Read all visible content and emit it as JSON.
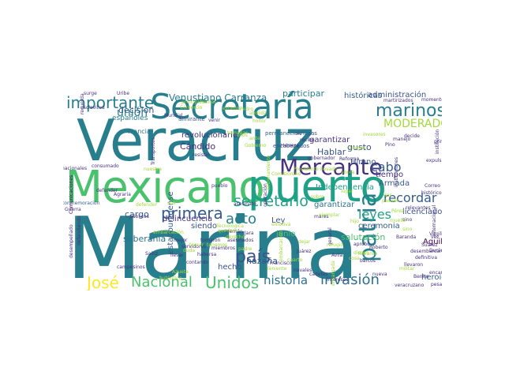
{
  "word_cloud": {
    "background": "#ffffff",
    "palette": [
      "#440154",
      "#46327e",
      "#365c8d",
      "#277f8e",
      "#1fa187",
      "#4ac16d",
      "#a0da39",
      "#fde725",
      "#2c728e",
      "#3b528b"
    ],
    "words": [
      {
        "text": "Marina",
        "color": "#277f8e"
      },
      {
        "text": "Veracruz",
        "color": "#277f8e"
      },
      {
        "text": "Mexicano",
        "color": "#4ac16d"
      },
      {
        "text": "puerto",
        "color": "#1fa187"
      },
      {
        "text": "Secretaría",
        "color": "#277f8e"
      },
      {
        "text": "Mercante",
        "color": "#46327e"
      },
      {
        "text": "marinos",
        "color": "#277f8e"
      },
      {
        "text": "importante",
        "color": "#277f8e"
      },
      {
        "text": "patria",
        "color": "#277f8e"
      },
      {
        "text": "MODERADORA",
        "color": "#a0da39"
      },
      {
        "text": "Unidos",
        "color": "#4ac16d"
      },
      {
        "text": "Nacional",
        "color": "#4ac16d"
      },
      {
        "text": "José",
        "color": "#fde725"
      },
      {
        "text": "historia",
        "color": "#2c728e"
      },
      {
        "text": "invasión",
        "color": "#2c728e"
      },
      {
        "text": "país",
        "color": "#3b528b"
      },
      {
        "text": "acto",
        "color": "#277f8e"
      },
      {
        "text": "primera",
        "color": "#365c8d"
      },
      {
        "text": "secretario",
        "color": "#1fa187"
      },
      {
        "text": "unión",
        "color": "#277f8e"
      },
      {
        "text": "Venustiano Carranza",
        "color": "#277f8e"
      },
      {
        "text": "cabo",
        "color": "#365c8d"
      },
      {
        "text": "leyes",
        "color": "#1fa187"
      },
      {
        "text": "recordar",
        "color": "#365c8d"
      },
      {
        "text": "participar",
        "color": "#277f8e"
      },
      {
        "text": "administración",
        "color": "#3b528b"
      },
      {
        "text": "históricas",
        "color": "#365c8d"
      },
      {
        "text": "garantizar",
        "color": "#46327e"
      },
      {
        "text": "garantizar",
        "color": "#2c728e"
      },
      {
        "text": "decisión",
        "color": "#365c8d"
      },
      {
        "text": "revolucionario",
        "color": "#46327e"
      },
      {
        "text": "Cándido",
        "color": "#46327e"
      },
      {
        "text": "gusto",
        "color": "#3b528b"
      },
      {
        "text": "Hablar",
        "color": "#3b528b"
      },
      {
        "text": "Himno",
        "color": "#365c8d"
      },
      {
        "text": "tiempo",
        "color": "#46327e"
      },
      {
        "text": "Armada",
        "color": "#365c8d"
      },
      {
        "text": "licenciado",
        "color": "#3b528b"
      },
      {
        "text": "Aguilar",
        "color": "#440154"
      },
      {
        "text": "heroicos",
        "color": "#365c8d"
      },
      {
        "text": "soberanía",
        "color": "#2c728e"
      },
      {
        "text": "cargo",
        "color": "#365c8d"
      },
      {
        "text": "delincuencia",
        "color": "#46327e"
      },
      {
        "text": "siendo",
        "color": "#3b528b"
      },
      {
        "text": "hazaña",
        "color": "#365c8d"
      },
      {
        "text": "hecho",
        "color": "#3b528b"
      },
      {
        "text": "Ley",
        "color": "#3b528b"
      },
      {
        "text": "ceremonia",
        "color": "#365c8d"
      },
      {
        "text": "salutación",
        "color": "#4ac16d"
      },
      {
        "text": "junio",
        "color": "#4ac16d"
      },
      {
        "text": "Independencia",
        "color": "#1fa187"
      },
      {
        "text": "estadounidense",
        "color": "#365c8d"
      },
      {
        "text": "españoles",
        "color": "#277f8e"
      },
      {
        "text": "Amigas",
        "color": "#3b528b"
      },
      {
        "text": "permanecían",
        "color": "#365c8d"
      },
      {
        "text": "encabezados",
        "color": "#3b528b"
      },
      {
        "text": "almirante",
        "color": "#3b528b"
      },
      {
        "text": "Francia",
        "color": "#2c728e"
      },
      {
        "text": "Uribe",
        "color": "#46327e"
      },
      {
        "text": "surge",
        "color": "#46327e"
      },
      {
        "text": "esclavitud",
        "color": "#46327e"
      },
      {
        "text": "Mundial",
        "color": "#46327e"
      },
      {
        "text": "Comunicaciones",
        "color": "#440154"
      },
      {
        "text": "nacionales",
        "color": "#46327e"
      },
      {
        "text": "consumado",
        "color": "#46327e"
      },
      {
        "text": "defender",
        "color": "#46327e"
      },
      {
        "text": "conmemoración",
        "color": "#365c8d"
      },
      {
        "text": "Guerra",
        "color": "#46327e"
      },
      {
        "text": "defendiendo",
        "color": "#46327e"
      },
      {
        "text": "desempeñado",
        "color": "#46327e"
      },
      {
        "text": "vicepresidente",
        "color": "#46327e"
      },
      {
        "text": "campesinos",
        "color": "#46327e"
      },
      {
        "text": "públicos",
        "color": "#46327e"
      },
      {
        "text": "Sainz",
        "color": "#46327e"
      },
      {
        "text": "mejor",
        "color": "#46327e"
      },
      {
        "text": "llevar",
        "color": "#46327e"
      },
      {
        "text": "servidores",
        "color": "#46327e"
      },
      {
        "text": "tomaron",
        "color": "#46327e"
      },
      {
        "text": "asesinados",
        "color": "#46327e"
      },
      {
        "text": "miembros",
        "color": "#46327e"
      },
      {
        "text": "asesinato",
        "color": "#46327e"
      },
      {
        "text": "Hernán",
        "color": "#46327e"
      },
      {
        "text": "Jara",
        "color": "#46327e"
      },
      {
        "text": "Juárez",
        "color": "#46327e"
      },
      {
        "text": "navales",
        "color": "#46327e"
      },
      {
        "text": "Francisco",
        "color": "#46327e"
      },
      {
        "text": "general",
        "color": "#46327e"
      },
      {
        "text": "Ávila",
        "color": "#46327e"
      },
      {
        "text": "Baranda",
        "color": "#46327e"
      },
      {
        "text": "Virgilio",
        "color": "#46327e"
      },
      {
        "text": "Durán",
        "color": "#46327e"
      },
      {
        "text": "desembarcaron",
        "color": "#46327e"
      },
      {
        "text": "definitiva",
        "color": "#46327e"
      },
      {
        "text": "encargó",
        "color": "#46327e"
      },
      {
        "text": "llevaron",
        "color": "#46327e"
      },
      {
        "text": "Benito",
        "color": "#46327e"
      },
      {
        "text": "veracruzano",
        "color": "#46327e"
      },
      {
        "text": "manejo",
        "color": "#46327e"
      },
      {
        "text": "Pino",
        "color": "#46327e"
      },
      {
        "text": "decide",
        "color": "#46327e"
      },
      {
        "text": "primer",
        "color": "#46327e"
      },
      {
        "text": "expulsar",
        "color": "#46327e"
      },
      {
        "text": "Correo",
        "color": "#46327e"
      },
      {
        "text": "histórico",
        "color": "#46327e"
      },
      {
        "text": "momento",
        "color": "#46327e"
      },
      {
        "text": "martirizados",
        "color": "#46327e"
      },
      {
        "text": "institución",
        "color": "#46327e"
      },
      {
        "text": "internacional",
        "color": "#46327e"
      },
      {
        "text": "Suárez",
        "color": "#46327e"
      },
      {
        "text": "pesar",
        "color": "#46327e"
      },
      {
        "text": "relevantes",
        "color": "#46327e"
      },
      {
        "text": "sino",
        "color": "#46327e"
      },
      {
        "text": "mares",
        "color": "#46327e"
      },
      {
        "text": "barcos",
        "color": "#46327e"
      },
      {
        "text": "cadetes",
        "color": "#46327e"
      },
      {
        "text": "nueva",
        "color": "#46327e"
      },
      {
        "text": "intereses",
        "color": "#46327e"
      },
      {
        "text": "vez",
        "color": "#46327e"
      },
      {
        "text": "Agraria",
        "color": "#46327e"
      },
      {
        "text": "Transportes",
        "color": "#46327e"
      },
      {
        "text": "gobernador",
        "color": "#46327e"
      },
      {
        "text": "operación",
        "color": "#46327e"
      },
      {
        "text": "resistió",
        "color": "#46327e"
      },
      {
        "text": "venir",
        "color": "#46327e"
      },
      {
        "text": "pueblo",
        "color": "#46327e"
      },
      {
        "text": "recuerda",
        "color": "#46327e"
      },
      {
        "text": "instituciones",
        "color": "#46327e"
      },
      {
        "text": "Herrera",
        "color": "#46327e"
      },
      {
        "text": "recibe",
        "color": "#46327e"
      },
      {
        "text": "Reforma",
        "color": "#46327e"
      },
      {
        "text": "aprobó",
        "color": "#46327e"
      },
      {
        "text": "Roberto",
        "color": "#46327e"
      },
      {
        "text": "contando",
        "color": "#46327e"
      },
      {
        "text": "habersa",
        "color": "#46327e"
      },
      {
        "text": "Azueta",
        "color": "#a0da39"
      },
      {
        "text": "auténtico",
        "color": "#a0da39"
      },
      {
        "text": "duda",
        "color": "#a0da39"
      },
      {
        "text": "cuarto",
        "color": "#a0da39"
      },
      {
        "text": "tomar",
        "color": "#a0da39"
      },
      {
        "text": "derecho",
        "color": "#a0da39"
      },
      {
        "text": "padre",
        "color": "#a0da39"
      },
      {
        "text": "Teniente",
        "color": "#a0da39"
      },
      {
        "text": "embarcación",
        "color": "#a0da39"
      },
      {
        "text": "dejar",
        "color": "#a0da39"
      },
      {
        "text": "refugió",
        "color": "#a0da39"
      },
      {
        "text": "encargada",
        "color": "#a0da39"
      },
      {
        "text": "ejemplar",
        "color": "#a0da39"
      },
      {
        "text": "cosa",
        "color": "#a0da39"
      },
      {
        "text": "tenemos",
        "color": "#a0da39"
      },
      {
        "text": "quedara",
        "color": "#a0da39"
      },
      {
        "text": "emotiva",
        "color": "#a0da39"
      },
      {
        "text": "llevado",
        "color": "#a0da39"
      },
      {
        "text": "amigos",
        "color": "#a0da39"
      },
      {
        "text": "Presidente",
        "color": "#a0da39"
      },
      {
        "text": "ahora",
        "color": "#a0da39"
      },
      {
        "text": "pasado",
        "color": "#a0da39"
      },
      {
        "text": "Pérez",
        "color": "#a0da39"
      },
      {
        "text": "invasores",
        "color": "#a0da39"
      },
      {
        "text": "dieron",
        "color": "#a0da39"
      },
      {
        "text": "defender",
        "color": "#a0da39"
      },
      {
        "text": "Gobierno",
        "color": "#a0da39"
      },
      {
        "text": "llevaron",
        "color": "#a0da39"
      },
      {
        "text": "Comercio",
        "color": "#a0da39"
      },
      {
        "text": "sino",
        "color": "#a0da39"
      },
      {
        "text": "muelle",
        "color": "#a0da39"
      },
      {
        "text": "entrenamiento",
        "color": "#a0da39"
      },
      {
        "text": "embarcación",
        "color": "#a0da39"
      },
      {
        "text": "abolida",
        "color": "#a0da39"
      },
      {
        "text": "honor",
        "color": "#a0da39"
      },
      {
        "text": "Pedro",
        "color": "#a0da39"
      },
      {
        "text": "tomadas",
        "color": "#a0da39"
      },
      {
        "text": "ante",
        "color": "#a0da39"
      },
      {
        "text": "estados",
        "color": "#a0da39"
      },
      {
        "text": "ellos",
        "color": "#a0da39"
      },
      {
        "text": "hijo",
        "color": "#a0da39"
      },
      {
        "text": "año",
        "color": "#a0da39"
      },
      {
        "text": "Comisión",
        "color": "#a0da39"
      },
      {
        "text": "Tecnológica",
        "color": "#a0da39"
      },
      {
        "text": "dos",
        "color": "#a0da39"
      },
      {
        "text": "lugar",
        "color": "#a0da39"
      },
      {
        "text": "sobre",
        "color": "#a0da39"
      },
      {
        "text": "principios",
        "color": "#a0da39"
      },
      {
        "text": "sus",
        "color": "#a0da39"
      },
      {
        "text": "honrar",
        "color": "#a0da39"
      },
      {
        "text": "militar",
        "color": "#a0da39"
      },
      {
        "text": "nuestra",
        "color": "#a0da39"
      }
    ]
  }
}
